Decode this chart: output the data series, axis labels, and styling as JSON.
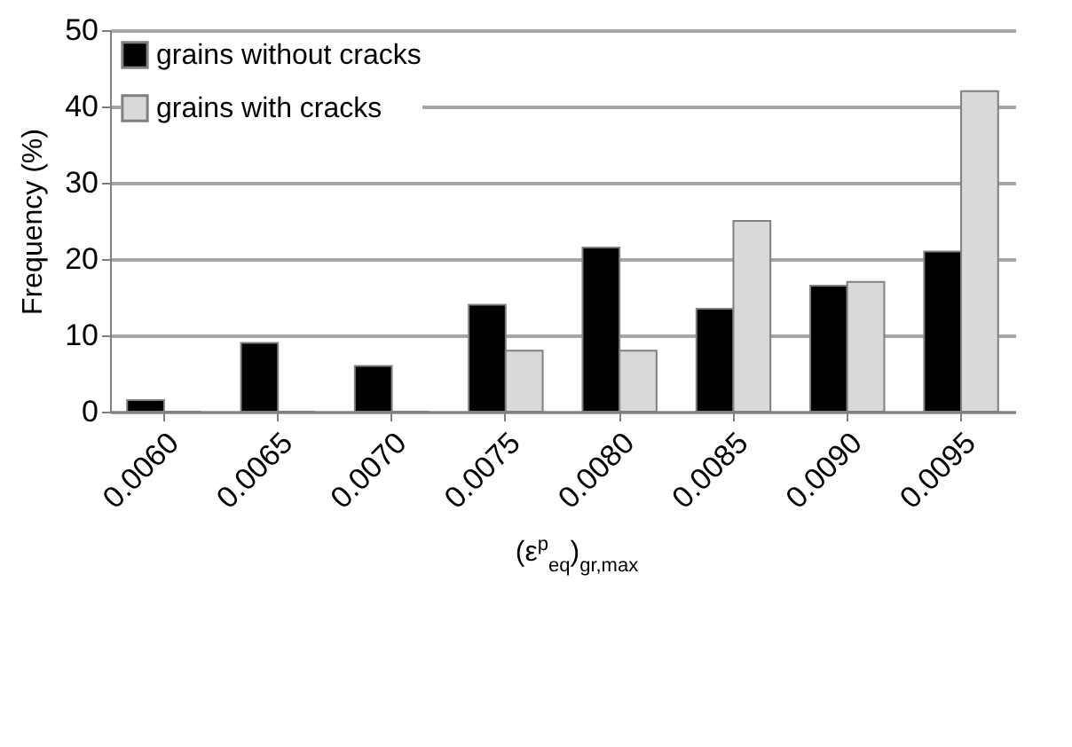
{
  "chart_data": {
    "type": "bar",
    "xlabel": "(ε$^{p}$$_{eq}$)$_{gr,max}$",
    "ylabel": "Frequency (%)",
    "categories": [
      "0.0060",
      "0.0065",
      "0.0070",
      "0.0075",
      "0.0080",
      "0.0085",
      "0.0090",
      "0.0095"
    ],
    "series": [
      {
        "name": "grains without cracks",
        "color": "#000000",
        "values": [
          1.5,
          9,
          6,
          14,
          21.5,
          13.5,
          16.5,
          21
        ]
      },
      {
        "name": "grains with cracks",
        "color": "#d9d9d9",
        "values": [
          0,
          0,
          0,
          8,
          8,
          25,
          17,
          42
        ]
      }
    ],
    "ylim": [
      0,
      50
    ],
    "yticks": [
      0,
      10,
      20,
      30,
      40,
      50
    ],
    "grid": "y",
    "legend": "top left"
  }
}
